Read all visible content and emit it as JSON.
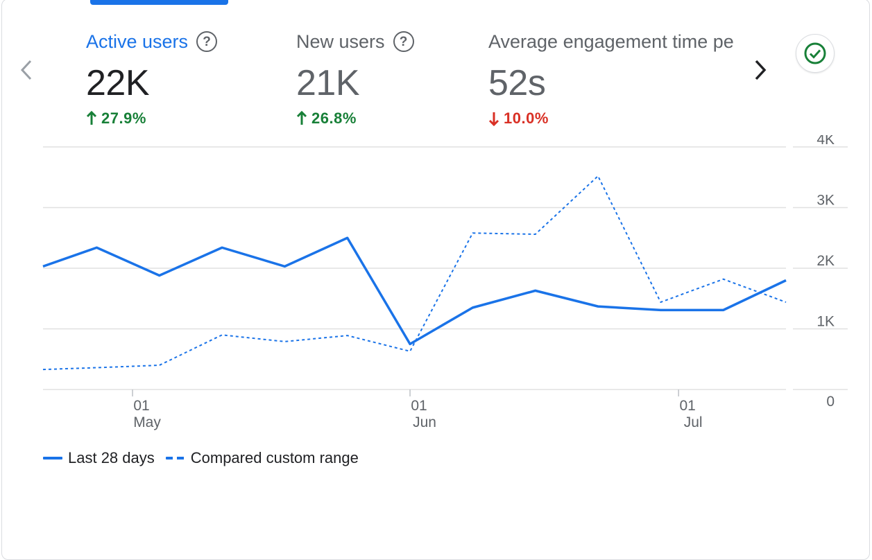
{
  "colors": {
    "accent": "#1a73e8",
    "up": "#188038",
    "down": "#d93025",
    "grid": "#e0e0e0",
    "muted": "#5f6368"
  },
  "metrics": [
    {
      "label": "Active users",
      "value": "22K",
      "change": "27.9%",
      "direction": "up",
      "active": true,
      "help_icon": "help-circle-icon"
    },
    {
      "label": "New users",
      "value": "21K",
      "change": "26.8%",
      "direction": "up",
      "active": false,
      "help_icon": "help-circle-icon"
    },
    {
      "label": "Average engagement time per active user",
      "value": "52s",
      "change": "10.0%",
      "direction": "down",
      "active": false
    }
  ],
  "nav": {
    "prev_icon": "chevron-left-icon",
    "next_icon": "chevron-right-icon",
    "status_icon": "check-circle-icon"
  },
  "chart_data": {
    "type": "line",
    "title": "",
    "xlabel": "",
    "ylabel": "",
    "ylim": [
      0,
      4000
    ],
    "y_ticks": [
      "0",
      "1K",
      "2K",
      "3K",
      "4K"
    ],
    "y_axis_side": "right",
    "grid": true,
    "x_ticks": [
      {
        "day": "01",
        "month": "May",
        "date": "2024-05-01"
      },
      {
        "day": "01",
        "month": "Jun",
        "date": "2024-06-01"
      },
      {
        "day": "01",
        "month": "Jul",
        "date": "2024-07-01"
      }
    ],
    "x": [
      "2024-04-21",
      "2024-04-27",
      "2024-05-04",
      "2024-05-11",
      "2024-05-18",
      "2024-05-25",
      "2024-06-01",
      "2024-06-08",
      "2024-06-15",
      "2024-06-22",
      "2024-06-29",
      "2024-07-06",
      "2024-07-13"
    ],
    "series": [
      {
        "name": "Last 28 days",
        "style": "solid",
        "color": "#1a73e8",
        "values": [
          2030,
          2340,
          1880,
          2340,
          2030,
          2500,
          750,
          1350,
          1630,
          1370,
          1310,
          1310,
          1800
        ]
      },
      {
        "name": "Compared custom range",
        "style": "dashed",
        "color": "#1a73e8",
        "values": [
          330,
          360,
          400,
          900,
          790,
          890,
          630,
          2580,
          2560,
          3520,
          1440,
          1820,
          1440
        ]
      }
    ],
    "legend_position": "bottom-left"
  }
}
